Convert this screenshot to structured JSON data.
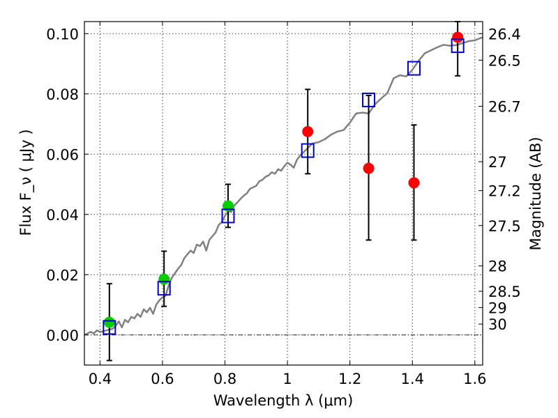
{
  "chart_data": {
    "type": "scatter",
    "xlabel": "Wavelength  λ (μm)",
    "ylabel": "Flux  F_ν  ( μJy )",
    "y2label": "Magnitude (AB)",
    "xlim": [
      0.35,
      1.625
    ],
    "ylim": [
      -0.01,
      0.104
    ],
    "x_ticks": [
      0.4,
      0.6,
      0.8,
      1.0,
      1.2,
      1.4,
      1.6
    ],
    "x_tick_labels": [
      "0.4",
      "0.6",
      "0.8",
      "1",
      "1.2",
      "1.4",
      "1.6"
    ],
    "y_ticks": [
      0.0,
      0.02,
      0.04,
      0.06,
      0.08,
      0.1
    ],
    "y_tick_labels": [
      "0.00",
      "0.02",
      "0.04",
      "0.06",
      "0.08",
      "0.10"
    ],
    "magnitude_ticks": [
      {
        "label": "26.4",
        "flux": 0.1
      },
      {
        "label": "26.5",
        "flux": 0.0912
      },
      {
        "label": "26.7",
        "flux": 0.0759
      },
      {
        "label": "27",
        "flux": 0.0575
      },
      {
        "label": "27.2",
        "flux": 0.0479
      },
      {
        "label": "27.5",
        "flux": 0.0363
      },
      {
        "label": "28",
        "flux": 0.0229
      },
      {
        "label": "28.5",
        "flux": 0.0145
      },
      {
        "label": "29",
        "flux": 0.0091
      },
      {
        "label": "30",
        "flux": 0.0036
      }
    ],
    "grid": true,
    "zero_line": true,
    "model_spectrum": {
      "color": "#808080",
      "x": [
        0.35,
        0.37,
        0.38,
        0.39,
        0.4,
        0.41,
        0.42,
        0.43,
        0.44,
        0.45,
        0.46,
        0.47,
        0.48,
        0.49,
        0.5,
        0.51,
        0.52,
        0.53,
        0.54,
        0.55,
        0.56,
        0.57,
        0.58,
        0.59,
        0.6,
        0.61,
        0.62,
        0.63,
        0.64,
        0.65,
        0.66,
        0.67,
        0.68,
        0.69,
        0.7,
        0.71,
        0.72,
        0.73,
        0.74,
        0.75,
        0.76,
        0.77,
        0.78,
        0.79,
        0.8,
        0.81,
        0.82,
        0.83,
        0.84,
        0.85,
        0.86,
        0.87,
        0.88,
        0.89,
        0.9,
        0.91,
        0.92,
        0.93,
        0.94,
        0.95,
        0.96,
        0.97,
        0.98,
        0.99,
        1.0,
        1.01,
        1.02,
        1.03,
        1.04,
        1.05,
        1.06,
        1.08,
        1.1,
        1.12,
        1.14,
        1.16,
        1.18,
        1.2,
        1.22,
        1.24,
        1.26,
        1.28,
        1.3,
        1.32,
        1.34,
        1.36,
        1.38,
        1.4,
        1.42,
        1.44,
        1.46,
        1.48,
        1.5,
        1.52,
        1.54,
        1.56,
        1.58,
        1.6,
        1.625
      ],
      "y": [
        0.0,
        0.001,
        0.0005,
        0.0015,
        0.001,
        0.0012,
        0.0015,
        0.0018,
        0.002,
        0.003,
        0.0045,
        0.0025,
        0.005,
        0.0042,
        0.006,
        0.0055,
        0.007,
        0.006,
        0.0085,
        0.0075,
        0.009,
        0.007,
        0.01,
        0.0115,
        0.0125,
        0.013,
        0.0165,
        0.019,
        0.0205,
        0.022,
        0.0232,
        0.0255,
        0.0268,
        0.028,
        0.0272,
        0.03,
        0.0295,
        0.031,
        0.028,
        0.0315,
        0.0328,
        0.034,
        0.0365,
        0.0375,
        0.0395,
        0.041,
        0.0408,
        0.043,
        0.044,
        0.0452,
        0.0462,
        0.047,
        0.0485,
        0.049,
        0.0495,
        0.051,
        0.0515,
        0.0525,
        0.053,
        0.054,
        0.0535,
        0.055,
        0.0545,
        0.056,
        0.0572,
        0.0565,
        0.0555,
        0.058,
        0.0595,
        0.0605,
        0.0615,
        0.0635,
        0.064,
        0.065,
        0.0665,
        0.0675,
        0.068,
        0.0705,
        0.0735,
        0.0738,
        0.0735,
        0.0765,
        0.0785,
        0.0803,
        0.0852,
        0.0862,
        0.0858,
        0.088,
        0.091,
        0.0935,
        0.0945,
        0.0955,
        0.0963,
        0.096,
        0.0962,
        0.0968,
        0.0975,
        0.0978,
        0.0988
      ]
    },
    "series": [
      {
        "marker": "circle",
        "color": "#00cc00",
        "x": [
          0.43,
          0.605,
          0.81
        ],
        "values": [
          0.0042,
          0.0185,
          0.0428
        ],
        "yerr_low": [
          -0.0085,
          0.0095,
          0.0357
        ],
        "yerr_high": [
          0.017,
          0.0278,
          0.05
        ]
      },
      {
        "marker": "circle",
        "color": "#ff0000",
        "x": [
          1.065,
          1.26,
          1.405,
          1.545
        ],
        "values": [
          0.0675,
          0.0553,
          0.0505,
          0.0988
        ],
        "yerr_low": [
          0.0535,
          0.0315,
          0.0315,
          0.086
        ],
        "yerr_high": [
          0.0815,
          0.0795,
          0.0697,
          0.104
        ]
      },
      {
        "marker": "square-open",
        "color": "#0000cc",
        "x": [
          0.43,
          0.605,
          0.81,
          1.065,
          1.26,
          1.405,
          1.545
        ],
        "values": [
          0.0025,
          0.0155,
          0.0395,
          0.0612,
          0.078,
          0.0885,
          0.096
        ]
      }
    ]
  }
}
